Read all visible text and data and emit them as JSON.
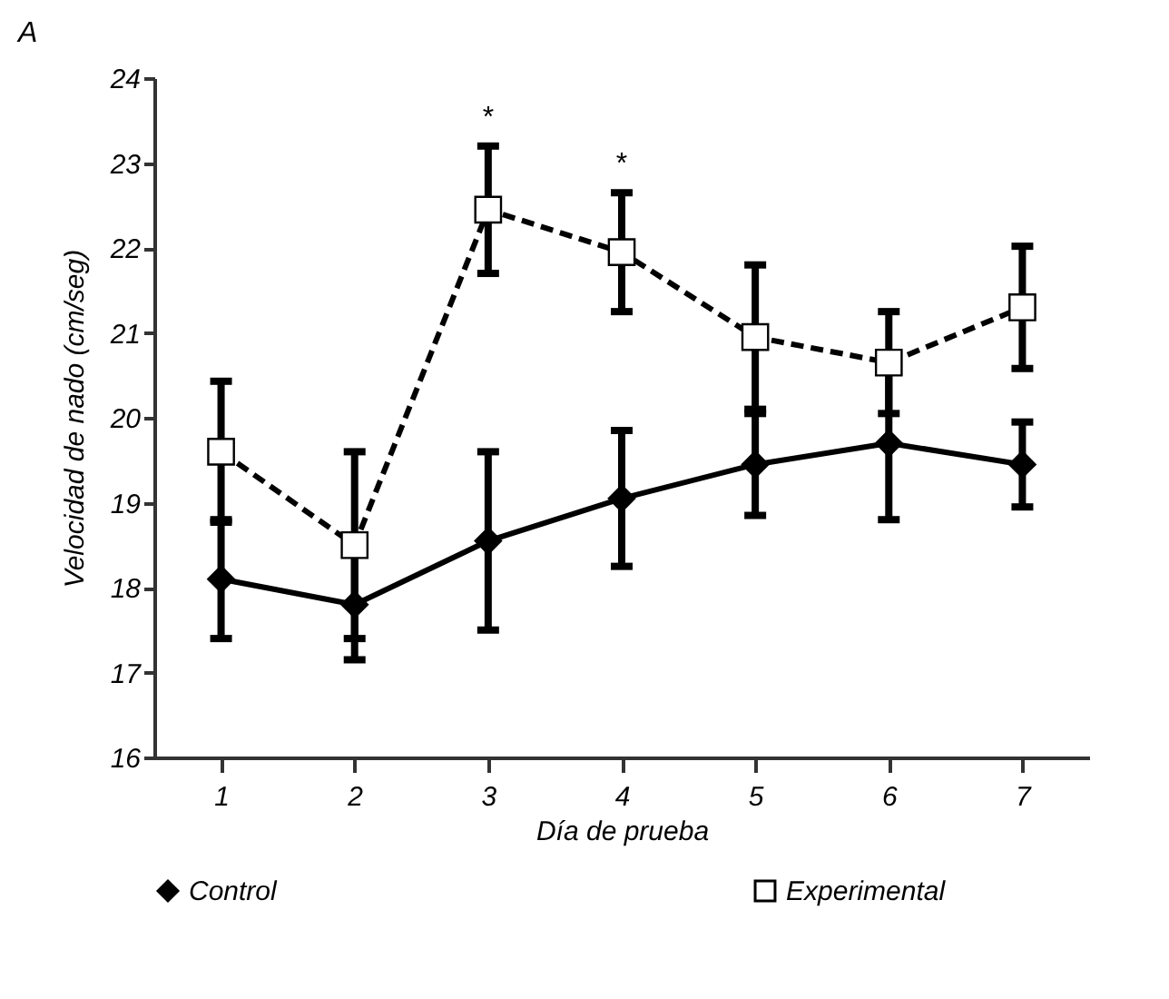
{
  "chart_data": {
    "type": "line",
    "title": "A",
    "xlabel": "Día de prueba",
    "ylabel": "Velocidad de nado (cm/seg)",
    "categories": [
      "1",
      "2",
      "3",
      "4",
      "5",
      "6",
      "7"
    ],
    "series": [
      {
        "name": "Control",
        "color": "#000000",
        "marker": "diamond",
        "line_style": "solid",
        "values": [
          18.1,
          17.8,
          18.55,
          19.05,
          19.45,
          19.7,
          19.45
        ],
        "errors": [
          0.7,
          0.65,
          1.05,
          0.8,
          0.6,
          0.9,
          0.5
        ]
      },
      {
        "name": "Experimental",
        "color": "#000000",
        "marker": "square",
        "line_style": "dashed",
        "values": [
          19.6,
          18.5,
          22.45,
          21.95,
          20.95,
          20.65,
          21.3
        ],
        "errors": [
          0.83,
          1.1,
          0.75,
          0.7,
          0.85,
          0.6,
          0.72
        ]
      }
    ],
    "annotations": [
      {
        "text": "*",
        "x": "3",
        "y": 23.2
      },
      {
        "text": "*",
        "x": "4",
        "y": 22.65
      }
    ],
    "ylim": [
      16,
      24
    ],
    "yticks": [
      16,
      17,
      18,
      19,
      20,
      21,
      22,
      23,
      24
    ],
    "grid": false,
    "legend": "bottom"
  }
}
